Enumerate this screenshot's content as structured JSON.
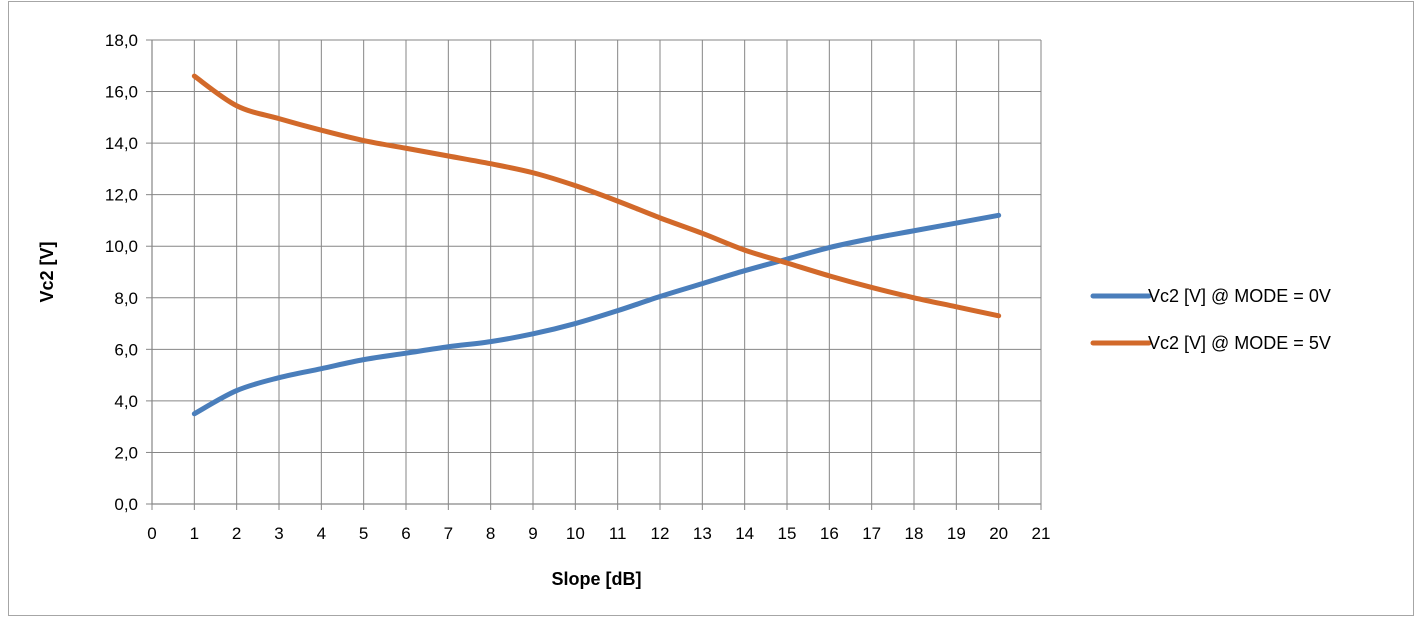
{
  "chart_data": {
    "type": "line",
    "title": "",
    "xlabel": "Slope [dB]",
    "ylabel": "Vc2 [V]",
    "xlim": [
      0,
      21
    ],
    "ylim": [
      0,
      18
    ],
    "x_ticks": [
      "0",
      "1",
      "2",
      "3",
      "4",
      "5",
      "6",
      "7",
      "8",
      "9",
      "10",
      "11",
      "12",
      "13",
      "14",
      "15",
      "16",
      "17",
      "18",
      "19",
      "20",
      "21"
    ],
    "y_ticks": [
      "0,0",
      "2,0",
      "4,0",
      "6,0",
      "8,0",
      "10,0",
      "12,0",
      "14,0",
      "16,0",
      "18,0"
    ],
    "grid": true,
    "legend_position": "right",
    "x": [
      1,
      2,
      3,
      4,
      5,
      6,
      7,
      8,
      9,
      10,
      11,
      12,
      13,
      14,
      15,
      16,
      17,
      18,
      19,
      20
    ],
    "series": [
      {
        "name": "Vc2 [V] @ MODE = 0V",
        "color": "#4a7ebb",
        "values": [
          3.5,
          4.4,
          4.9,
          5.25,
          5.6,
          5.85,
          6.1,
          6.3,
          6.6,
          7.0,
          7.5,
          8.05,
          8.55,
          9.05,
          9.5,
          9.95,
          10.3,
          10.6,
          10.9,
          11.2
        ]
      },
      {
        "name": "Vc2 [V] @ MODE = 5V",
        "color": "#d2692a",
        "values": [
          16.6,
          15.45,
          14.95,
          14.5,
          14.1,
          13.8,
          13.5,
          13.2,
          12.85,
          12.35,
          11.75,
          11.1,
          10.5,
          9.85,
          9.35,
          8.85,
          8.4,
          8.0,
          7.65,
          7.3
        ]
      }
    ]
  }
}
